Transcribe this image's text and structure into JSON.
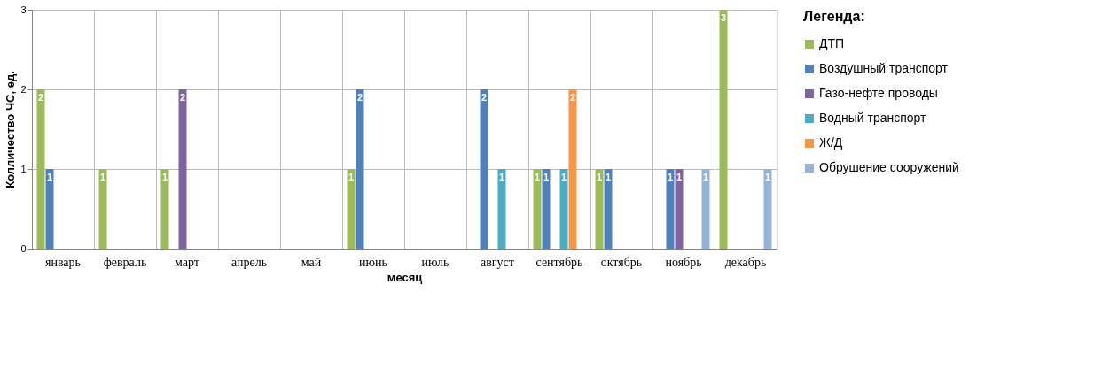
{
  "chart_data": {
    "type": "bar",
    "xlabel": "месяц",
    "ylabel": "Колличество ЧС, ед.",
    "legend_title": "Легенда:",
    "categories": [
      "январь",
      "февраль",
      "март",
      "апрель",
      "май",
      "июнь",
      "июль",
      "август",
      "сентябрь",
      "октябрь",
      "ноябрь",
      "декабрь"
    ],
    "series": [
      {
        "name": "ДТП",
        "color": "#9bbb59",
        "values": [
          2,
          1,
          1,
          null,
          null,
          1,
          null,
          null,
          1,
          1,
          null,
          3
        ]
      },
      {
        "name": "Воздушный транспорт",
        "color": "#4f81bd",
        "values": [
          1,
          null,
          null,
          null,
          null,
          2,
          null,
          2,
          1,
          1,
          1,
          null
        ]
      },
      {
        "name": "Газо-нефте проводы",
        "color": "#8064a2",
        "values": [
          null,
          null,
          2,
          null,
          null,
          null,
          null,
          null,
          null,
          null,
          1,
          null
        ]
      },
      {
        "name": "Водный транспорт",
        "color": "#4bacc6",
        "values": [
          null,
          null,
          null,
          null,
          null,
          null,
          null,
          1,
          1,
          null,
          null,
          null
        ]
      },
      {
        "name": "Ж/Д",
        "color": "#f79646",
        "values": [
          null,
          null,
          null,
          null,
          null,
          null,
          null,
          null,
          2,
          null,
          null,
          null
        ]
      },
      {
        "name": "Обрушение сооружений",
        "color": "#95b3d7",
        "values": [
          null,
          null,
          null,
          null,
          null,
          null,
          null,
          null,
          null,
          null,
          1,
          1
        ]
      }
    ],
    "ylim": [
      0,
      3
    ],
    "yticks": [
      0,
      1,
      2,
      3
    ],
    "grid": true,
    "legend": "right",
    "data_labels": true
  }
}
